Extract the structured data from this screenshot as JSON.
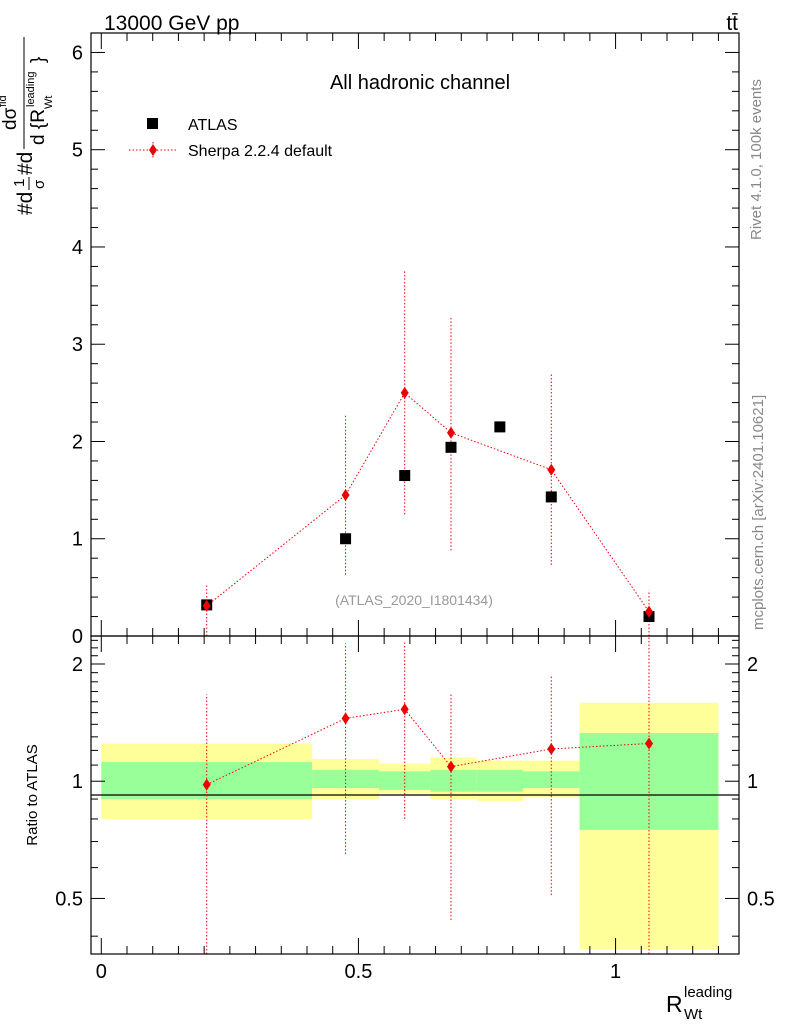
{
  "header": {
    "energy_label": "13000 GeV pp",
    "process_label": "tt̄"
  },
  "side_labels": {
    "rivet": "Rivet 4.1.0,  100k events",
    "source": "mcplots.cern.ch [arXiv:2401.10621]"
  },
  "colors": {
    "mc": "#ee0000",
    "data": "#000000",
    "band_inner": "#99ff99",
    "band_outer": "#ffff99",
    "watermark": "#999999"
  },
  "chart_data": [
    {
      "type": "scatter",
      "id": "main",
      "title": "All hadronic channel",
      "watermark": "(ATLAS_2020_I1801434)",
      "xlabel": "R_Wt^leading",
      "xlabel_main": "R",
      "xlabel_sub": "Wt",
      "xlabel_sup": "leading",
      "ylabel": "#d 1/σ #d dσ^{t}/d{R_Wt^leading}",
      "xlim": [
        -0.02,
        1.24
      ],
      "ylim": [
        0,
        6.2
      ],
      "yticks": [
        0,
        1,
        2,
        3,
        4,
        5,
        6
      ],
      "ytick_labels": [
        "0",
        "1",
        "2",
        "3",
        "4",
        "5",
        "6"
      ],
      "legend": [
        {
          "name": "ATLAS",
          "marker": "square"
        },
        {
          "name": "Sherpa 2.2.4 default",
          "marker": "diamond"
        }
      ],
      "series": [
        {
          "name": "ATLAS",
          "x": [
            0.205,
            0.475,
            0.59,
            0.68,
            0.775,
            0.875,
            1.065
          ],
          "y": [
            0.32,
            1.0,
            1.65,
            1.94,
            2.15,
            1.43,
            0.2
          ],
          "yerr": [
            0.04,
            0.05,
            0.05,
            0.05,
            0.05,
            0.05,
            0.04
          ]
        },
        {
          "name": "Sherpa 2.2.4 default",
          "x": [
            0.205,
            0.475,
            0.59,
            0.68,
            0.875,
            1.065
          ],
          "y": [
            0.31,
            1.45,
            2.5,
            2.09,
            1.71,
            0.25
          ],
          "yerr_low": [
            0.31,
            0.82,
            1.25,
            1.21,
            0.98,
            0.25
          ],
          "yerr_high": [
            0.22,
            0.83,
            1.26,
            1.2,
            0.98,
            0.22
          ]
        }
      ]
    },
    {
      "type": "scatter",
      "id": "ratio",
      "ylabel": "Ratio to ATLAS",
      "xlabel": "R_Wt^leading",
      "xlim": [
        -0.02,
        1.24
      ],
      "ylim": [
        0.36,
        2.36
      ],
      "yscale": "log",
      "yticks": [
        0.5,
        1,
        2
      ],
      "ytick_labels": [
        "0.5",
        "1",
        "2"
      ],
      "xticks": [
        0,
        0.5,
        1
      ],
      "xtick_labels": [
        "0",
        "0.5",
        "1"
      ],
      "reference": 1,
      "bands": [
        {
          "x": [
            0.0,
            0.41
          ],
          "inner": [
            0.9,
            1.12
          ],
          "outer": [
            0.8,
            1.25
          ]
        },
        {
          "x": [
            0.41,
            0.54
          ],
          "inner": [
            0.96,
            1.07
          ],
          "outer": [
            0.9,
            1.14
          ]
        },
        {
          "x": [
            0.54,
            0.64
          ],
          "inner": [
            0.95,
            1.06
          ],
          "outer": [
            0.93,
            1.11
          ]
        },
        {
          "x": [
            0.64,
            0.73
          ],
          "inner": [
            0.94,
            1.07
          ],
          "outer": [
            0.9,
            1.15
          ]
        },
        {
          "x": [
            0.73,
            0.82
          ],
          "inner": [
            0.94,
            1.07
          ],
          "outer": [
            0.89,
            1.13
          ]
        },
        {
          "x": [
            0.82,
            0.93
          ],
          "inner": [
            0.96,
            1.06
          ],
          "outer": [
            0.91,
            1.13
          ]
        },
        {
          "x": [
            0.93,
            1.2
          ],
          "inner": [
            0.75,
            1.33
          ],
          "outer": [
            0.37,
            1.59
          ]
        }
      ],
      "series": [
        {
          "name": "Sherpa 2.2.4 default",
          "x": [
            0.205,
            0.475,
            0.59,
            0.68,
            0.875,
            1.065
          ],
          "y": [
            0.98,
            1.45,
            1.53,
            1.09,
            1.21,
            1.25
          ],
          "yerr_low": [
            0.62,
            0.8,
            0.73,
            0.65,
            0.7,
            0.89
          ],
          "yerr_high": [
            0.69,
            0.81,
            0.74,
            0.59,
            0.66,
            1.11
          ]
        }
      ]
    }
  ]
}
